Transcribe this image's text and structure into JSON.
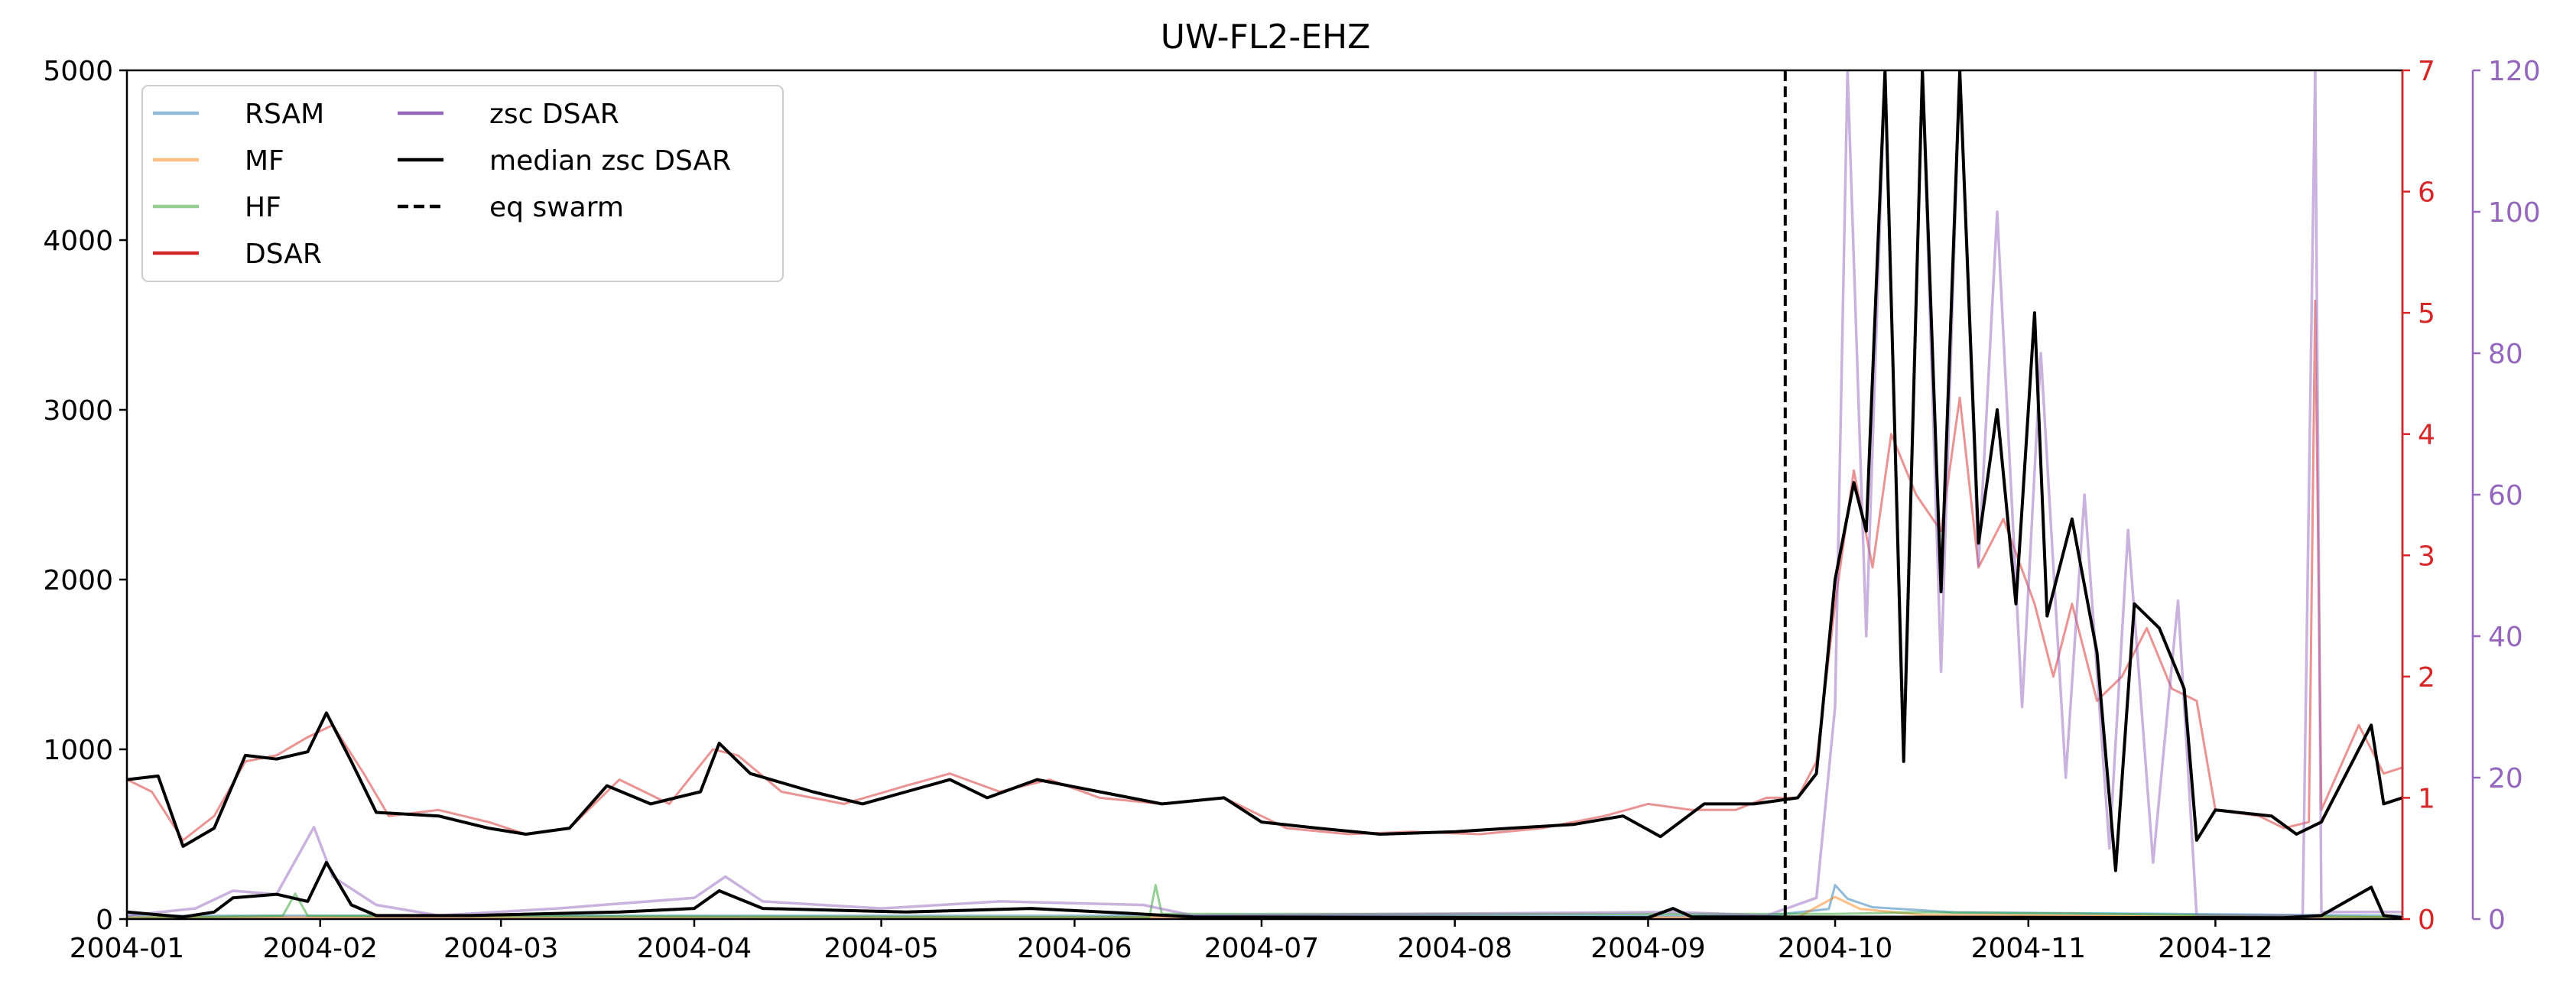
{
  "chart_data": {
    "type": "line",
    "title": "UW-FL2-EHZ",
    "x_range": [
      "2004-01-01",
      "2004-12-31"
    ],
    "x_ticks": [
      "2004-01",
      "2004-02",
      "2004-03",
      "2004-04",
      "2004-05",
      "2004-06",
      "2004-07",
      "2004-08",
      "2004-09",
      "2004-10",
      "2004-11",
      "2004-12"
    ],
    "y_left": {
      "range": [
        0,
        5000
      ],
      "ticks": [
        "0",
        "1000",
        "2000",
        "3000",
        "4000",
        "5000"
      ],
      "color": "#000000"
    },
    "y_right_dsar": {
      "range": [
        0,
        7
      ],
      "ticks": [
        "0",
        "1",
        "2",
        "3",
        "4",
        "5",
        "6",
        "7"
      ],
      "color": "#d62728"
    },
    "y_right_zsc": {
      "range": [
        0,
        120
      ],
      "ticks": [
        "0",
        "20",
        "40",
        "60",
        "80",
        "100",
        "120"
      ],
      "color": "#9467bd"
    },
    "legend_position": "top-left",
    "colors": {
      "RSAM": "#1f77b4",
      "MF": "#ff7f0e",
      "HF": "#2ca02c",
      "DSAR": "#d62728",
      "zsc": "#9467bd",
      "median": "#000000"
    },
    "series": [
      {
        "name": "RSAM",
        "axis": "left",
        "points": [
          [
            "2004-01-01",
            20
          ],
          [
            "2004-09-20",
            20
          ],
          [
            "2004-09-30",
            60
          ],
          [
            "2004-10-01",
            200
          ],
          [
            "2004-10-03",
            120
          ],
          [
            "2004-10-07",
            70
          ],
          [
            "2004-10-20",
            40
          ],
          [
            "2004-12-31",
            20
          ]
        ]
      },
      {
        "name": "MF",
        "axis": "left",
        "points": [
          [
            "2004-01-01",
            10
          ],
          [
            "2004-09-25",
            10
          ],
          [
            "2004-10-01",
            130
          ],
          [
            "2004-10-05",
            60
          ],
          [
            "2004-10-15",
            25
          ],
          [
            "2004-12-31",
            10
          ]
        ]
      },
      {
        "name": "HF",
        "axis": "left",
        "points": [
          [
            "2004-01-01",
            5
          ],
          [
            "2004-01-26",
            20
          ],
          [
            "2004-01-28",
            150
          ],
          [
            "2004-01-30",
            20
          ],
          [
            "2004-06-13",
            10
          ],
          [
            "2004-06-14",
            200
          ],
          [
            "2004-06-15",
            30
          ],
          [
            "2004-10-01",
            30
          ],
          [
            "2004-10-15",
            40
          ],
          [
            "2004-11-15",
            30
          ],
          [
            "2004-12-31",
            10
          ]
        ]
      },
      {
        "name": "DSAR",
        "axis": "right_dsar",
        "points": [
          [
            "2004-01-01",
            1.15
          ],
          [
            "2004-01-05",
            1.05
          ],
          [
            "2004-01-10",
            0.65
          ],
          [
            "2004-01-15",
            0.85
          ],
          [
            "2004-01-20",
            1.3
          ],
          [
            "2004-01-25",
            1.35
          ],
          [
            "2004-01-30",
            1.5
          ],
          [
            "2004-02-03",
            1.6
          ],
          [
            "2004-02-08",
            1.2
          ],
          [
            "2004-02-12",
            0.85
          ],
          [
            "2004-02-20",
            0.9
          ],
          [
            "2004-02-28",
            0.8
          ],
          [
            "2004-03-05",
            0.7
          ],
          [
            "2004-03-12",
            0.75
          ],
          [
            "2004-03-20",
            1.15
          ],
          [
            "2004-03-28",
            0.95
          ],
          [
            "2004-04-04",
            1.4
          ],
          [
            "2004-04-08",
            1.35
          ],
          [
            "2004-04-15",
            1.05
          ],
          [
            "2004-04-25",
            0.95
          ],
          [
            "2004-05-05",
            1.1
          ],
          [
            "2004-05-12",
            1.2
          ],
          [
            "2004-05-20",
            1.05
          ],
          [
            "2004-05-28",
            1.15
          ],
          [
            "2004-06-05",
            1.0
          ],
          [
            "2004-06-15",
            0.95
          ],
          [
            "2004-06-25",
            1.0
          ],
          [
            "2004-07-05",
            0.75
          ],
          [
            "2004-07-15",
            0.7
          ],
          [
            "2004-07-25",
            0.72
          ],
          [
            "2004-08-05",
            0.7
          ],
          [
            "2004-08-15",
            0.75
          ],
          [
            "2004-08-25",
            0.85
          ],
          [
            "2004-09-01",
            0.95
          ],
          [
            "2004-09-08",
            0.9
          ],
          [
            "2004-09-15",
            0.9
          ],
          [
            "2004-09-20",
            1.0
          ],
          [
            "2004-09-25",
            1.0
          ],
          [
            "2004-09-28",
            1.3
          ],
          [
            "2004-10-01",
            2.6
          ],
          [
            "2004-10-04",
            3.7
          ],
          [
            "2004-10-07",
            2.9
          ],
          [
            "2004-10-10",
            4.0
          ],
          [
            "2004-10-14",
            3.5
          ],
          [
            "2004-10-18",
            3.2
          ],
          [
            "2004-10-21",
            4.3
          ],
          [
            "2004-10-24",
            2.9
          ],
          [
            "2004-10-28",
            3.3
          ],
          [
            "2004-11-02",
            2.6
          ],
          [
            "2004-11-05",
            2.0
          ],
          [
            "2004-11-08",
            2.6
          ],
          [
            "2004-11-12",
            1.8
          ],
          [
            "2004-11-16",
            2.0
          ],
          [
            "2004-11-20",
            2.4
          ],
          [
            "2004-11-24",
            1.9
          ],
          [
            "2004-11-28",
            1.8
          ],
          [
            "2004-12-01",
            0.9
          ],
          [
            "2004-12-08",
            0.85
          ],
          [
            "2004-12-12",
            0.75
          ],
          [
            "2004-12-16",
            0.8
          ],
          [
            "2004-12-17",
            5.1
          ],
          [
            "2004-12-18",
            0.9
          ],
          [
            "2004-12-24",
            1.6
          ],
          [
            "2004-12-28",
            1.2
          ],
          [
            "2004-12-31",
            1.25
          ]
        ]
      },
      {
        "name": "zsc DSAR",
        "axis": "right_zsc",
        "points": [
          [
            "2004-01-01",
            0.5
          ],
          [
            "2004-01-12",
            1.5
          ],
          [
            "2004-01-18",
            4.0
          ],
          [
            "2004-01-25",
            3.5
          ],
          [
            "2004-01-31",
            13.0
          ],
          [
            "2004-02-03",
            6.0
          ],
          [
            "2004-02-10",
            2.0
          ],
          [
            "2004-02-20",
            0.5
          ],
          [
            "2004-03-10",
            1.5
          ],
          [
            "2004-04-01",
            3.0
          ],
          [
            "2004-04-06",
            6.0
          ],
          [
            "2004-04-12",
            2.5
          ],
          [
            "2004-05-01",
            1.5
          ],
          [
            "2004-05-20",
            2.5
          ],
          [
            "2004-06-12",
            2.0
          ],
          [
            "2004-06-20",
            0.5
          ],
          [
            "2004-09-05",
            1.0
          ],
          [
            "2004-09-20",
            0.5
          ],
          [
            "2004-09-28",
            3.0
          ],
          [
            "2004-10-01",
            30.0
          ],
          [
            "2004-10-03",
            120.0
          ],
          [
            "2004-10-06",
            40.0
          ],
          [
            "2004-10-09",
            120.0
          ],
          [
            "2004-10-12",
            25.0
          ],
          [
            "2004-10-15",
            120.0
          ],
          [
            "2004-10-18",
            35.0
          ],
          [
            "2004-10-21",
            120.0
          ],
          [
            "2004-10-24",
            50.0
          ],
          [
            "2004-10-27",
            100.0
          ],
          [
            "2004-10-31",
            30.0
          ],
          [
            "2004-11-03",
            80.0
          ],
          [
            "2004-11-07",
            20.0
          ],
          [
            "2004-11-10",
            60.0
          ],
          [
            "2004-11-14",
            10.0
          ],
          [
            "2004-11-17",
            55.0
          ],
          [
            "2004-11-21",
            8.0
          ],
          [
            "2004-11-25",
            45.0
          ],
          [
            "2004-11-28",
            0.5
          ],
          [
            "2004-12-15",
            0.5
          ],
          [
            "2004-12-17",
            120.0
          ],
          [
            "2004-12-18",
            1.0
          ],
          [
            "2004-12-31",
            1.0
          ]
        ]
      },
      {
        "name": "median zsc DSAR",
        "axis": "right_dsar",
        "points": [
          [
            "2004-01-01",
            1.15
          ],
          [
            "2004-01-06",
            1.18
          ],
          [
            "2004-01-10",
            0.6
          ],
          [
            "2004-01-15",
            0.75
          ],
          [
            "2004-01-20",
            1.35
          ],
          [
            "2004-01-25",
            1.32
          ],
          [
            "2004-01-30",
            1.38
          ],
          [
            "2004-02-02",
            1.7
          ],
          [
            "2004-02-06",
            1.3
          ],
          [
            "2004-02-10",
            0.88
          ],
          [
            "2004-02-20",
            0.85
          ],
          [
            "2004-02-28",
            0.75
          ],
          [
            "2004-03-05",
            0.7
          ],
          [
            "2004-03-12",
            0.75
          ],
          [
            "2004-03-18",
            1.1
          ],
          [
            "2004-03-25",
            0.95
          ],
          [
            "2004-04-02",
            1.05
          ],
          [
            "2004-04-05",
            1.45
          ],
          [
            "2004-04-10",
            1.2
          ],
          [
            "2004-04-20",
            1.05
          ],
          [
            "2004-04-28",
            0.95
          ],
          [
            "2004-05-05",
            1.05
          ],
          [
            "2004-05-12",
            1.15
          ],
          [
            "2004-05-18",
            1.0
          ],
          [
            "2004-05-26",
            1.15
          ],
          [
            "2004-06-05",
            1.05
          ],
          [
            "2004-06-15",
            0.95
          ],
          [
            "2004-06-25",
            1.0
          ],
          [
            "2004-07-01",
            0.8
          ],
          [
            "2004-07-10",
            0.75
          ],
          [
            "2004-07-20",
            0.7
          ],
          [
            "2004-08-01",
            0.72
          ],
          [
            "2004-08-10",
            0.75
          ],
          [
            "2004-08-20",
            0.78
          ],
          [
            "2004-08-28",
            0.85
          ],
          [
            "2004-09-03",
            0.68
          ],
          [
            "2004-09-10",
            0.95
          ],
          [
            "2004-09-18",
            0.95
          ],
          [
            "2004-09-25",
            1.0
          ],
          [
            "2004-09-28",
            1.2
          ],
          [
            "2004-10-01",
            2.8
          ],
          [
            "2004-10-04",
            3.6
          ],
          [
            "2004-10-06",
            3.2
          ],
          [
            "2004-10-09",
            7.0
          ],
          [
            "2004-10-12",
            1.3
          ],
          [
            "2004-10-15",
            7.0
          ],
          [
            "2004-10-18",
            2.7
          ],
          [
            "2004-10-21",
            7.0
          ],
          [
            "2004-10-24",
            3.1
          ],
          [
            "2004-10-27",
            4.2
          ],
          [
            "2004-10-30",
            2.6
          ],
          [
            "2004-11-02",
            5.0
          ],
          [
            "2004-11-04",
            2.5
          ],
          [
            "2004-11-08",
            3.3
          ],
          [
            "2004-11-12",
            2.2
          ],
          [
            "2004-11-15",
            0.4
          ],
          [
            "2004-11-18",
            2.6
          ],
          [
            "2004-11-22",
            2.4
          ],
          [
            "2004-11-26",
            1.9
          ],
          [
            "2004-11-28",
            0.65
          ],
          [
            "2004-12-01",
            0.9
          ],
          [
            "2004-12-10",
            0.85
          ],
          [
            "2004-12-14",
            0.7
          ],
          [
            "2004-12-18",
            0.8
          ],
          [
            "2004-12-23",
            1.3
          ],
          [
            "2004-12-26",
            1.6
          ],
          [
            "2004-12-28",
            0.95
          ],
          [
            "2004-12-31",
            1.0
          ]
        ]
      },
      {
        "name": "median zsc DSAR (lower)",
        "axis": "right_zsc",
        "legend": false,
        "points": [
          [
            "2004-01-01",
            1.0
          ],
          [
            "2004-01-10",
            0.3
          ],
          [
            "2004-01-15",
            1.0
          ],
          [
            "2004-01-18",
            3.0
          ],
          [
            "2004-01-25",
            3.5
          ],
          [
            "2004-01-30",
            2.5
          ],
          [
            "2004-02-02",
            8.0
          ],
          [
            "2004-02-06",
            2.0
          ],
          [
            "2004-02-10",
            0.5
          ],
          [
            "2004-02-25",
            0.5
          ],
          [
            "2004-03-20",
            1.0
          ],
          [
            "2004-04-01",
            1.5
          ],
          [
            "2004-04-05",
            4.0
          ],
          [
            "2004-04-12",
            1.5
          ],
          [
            "2004-05-05",
            1.0
          ],
          [
            "2004-05-25",
            1.5
          ],
          [
            "2004-06-10",
            0.8
          ],
          [
            "2004-06-20",
            0.3
          ],
          [
            "2004-09-01",
            0.2
          ],
          [
            "2004-09-05",
            1.5
          ],
          [
            "2004-09-08",
            0.3
          ],
          [
            "2004-12-12",
            0.2
          ],
          [
            "2004-12-18",
            0.5
          ],
          [
            "2004-12-26",
            4.5
          ],
          [
            "2004-12-28",
            0.5
          ],
          [
            "2004-12-31",
            0.2
          ]
        ]
      }
    ],
    "vlines": [
      {
        "name": "eq swarm",
        "x": "2004-09-23",
        "style": "dashed",
        "color": "#000000"
      }
    ],
    "legend": [
      {
        "label": "RSAM",
        "color": "#1f77b4",
        "style": "solid",
        "alpha": 0.5
      },
      {
        "label": "MF",
        "color": "#ff7f0e",
        "style": "solid",
        "alpha": 0.5
      },
      {
        "label": "HF",
        "color": "#2ca02c",
        "style": "solid",
        "alpha": 0.5
      },
      {
        "label": "DSAR",
        "color": "#d62728",
        "style": "solid",
        "alpha": 1
      },
      {
        "label": "zsc DSAR",
        "color": "#9467bd",
        "style": "solid",
        "alpha": 1
      },
      {
        "label": "median zsc DSAR",
        "color": "#000000",
        "style": "solid",
        "alpha": 1
      },
      {
        "label": "eq swarm",
        "color": "#000000",
        "style": "dashed",
        "alpha": 1
      }
    ]
  }
}
